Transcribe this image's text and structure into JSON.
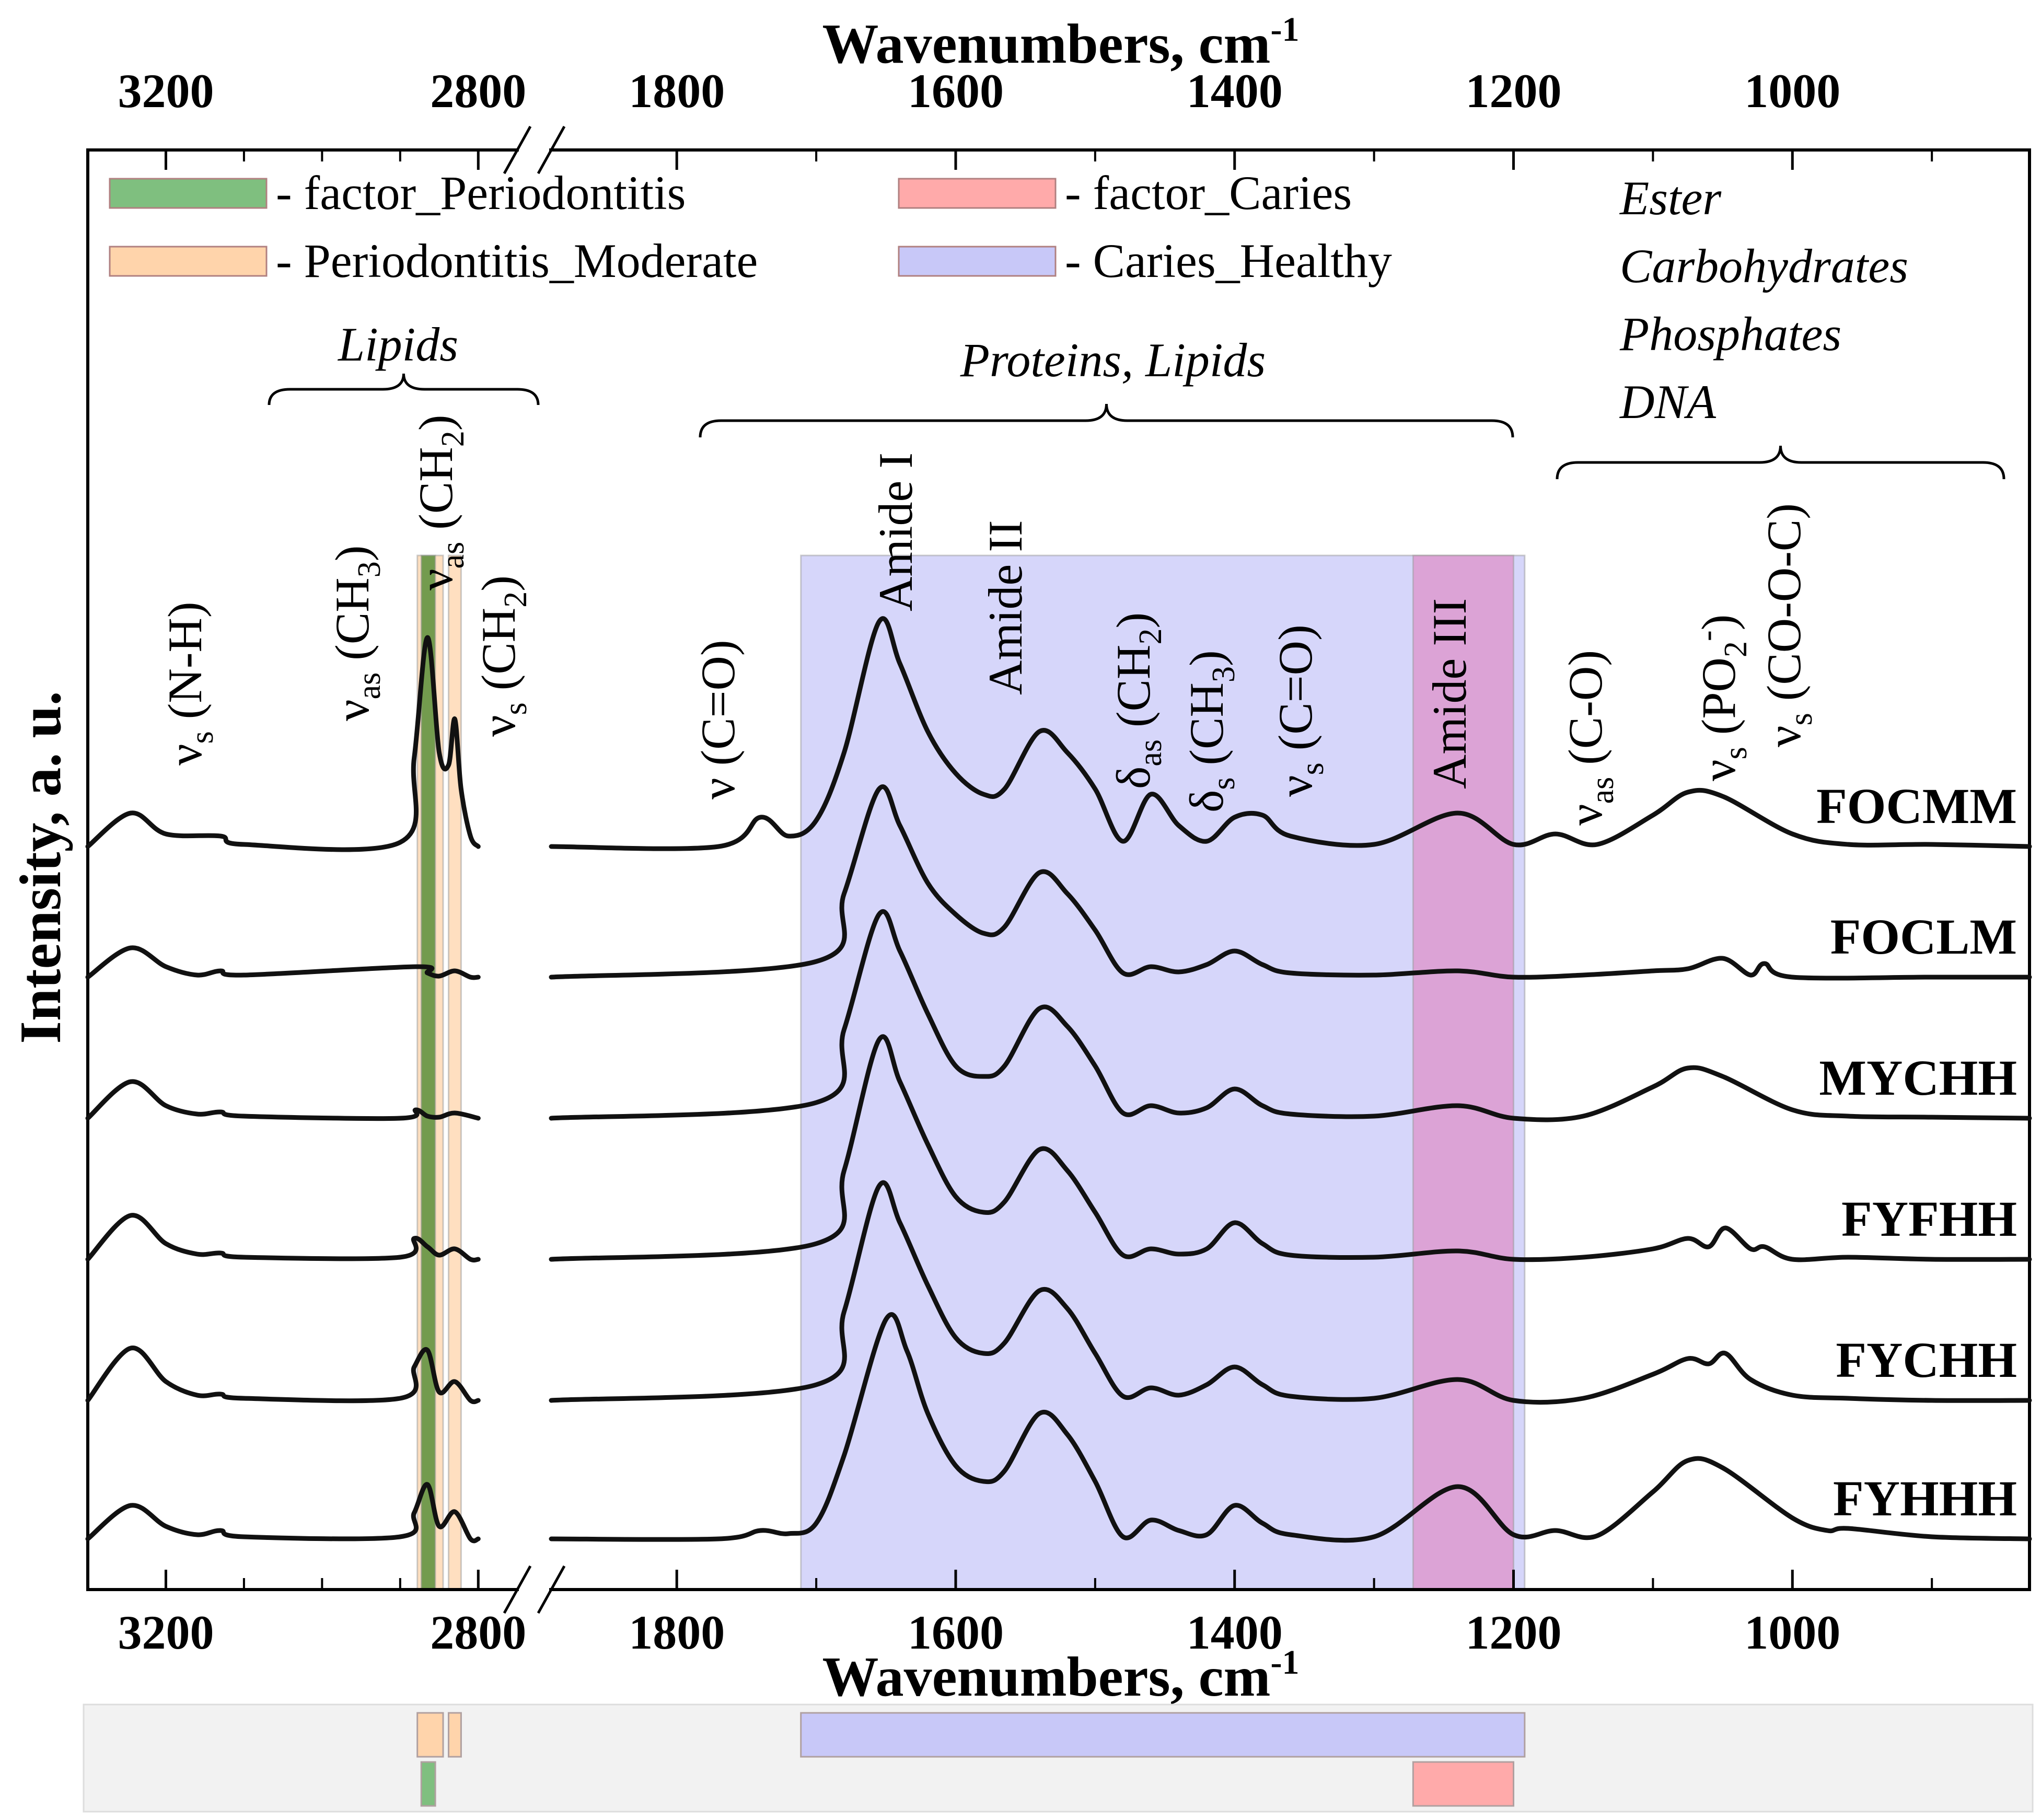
{
  "chart_data": {
    "type": "line",
    "title": "",
    "xlabel_top": "Wavenumbers, cm",
    "xlabel_bottom": "Wavenumbers, cm",
    "xlabel_sup": "-1",
    "ylabel": "Intensity, a. u.",
    "grid": false,
    "legend_position": "top",
    "x_axis_left_segment": {
      "range": [
        3300,
        2750
      ],
      "ticks": [
        "3200",
        "2800"
      ]
    },
    "x_axis_right_segment": {
      "range": [
        1890,
        830
      ],
      "ticks": [
        "1800",
        "1600",
        "1400",
        "1200",
        "1000"
      ]
    },
    "legend": [
      {
        "label": "- factor_Periodontitis",
        "color": "#7fbf7f"
      },
      {
        "label": "- Periodontitis_Moderate",
        "color": "#ffd4ab"
      },
      {
        "label": "- factor_Caries",
        "color": "#ffaaaa"
      },
      {
        "label": "- Caries_Healthy",
        "color": "#c8c8f8"
      }
    ],
    "regions": {
      "factor_Periodontitis": [
        [
          2873,
          2855
        ]
      ],
      "Periodontitis_Moderate": [
        [
          2878,
          2845
        ],
        [
          2838,
          2822
        ]
      ],
      "Caries_Healthy": [
        [
          1711,
          1192
        ]
      ],
      "factor_Caries": [
        [
          1272,
          1200
        ]
      ]
    },
    "group_labels": {
      "lipids": "Lipids",
      "proteins": "Proteins, Lipids",
      "ester": [
        "Ester",
        "Carbohydrates",
        "Phosphates",
        "DNA"
      ]
    },
    "annotations": [
      {
        "text": "ν",
        "sub": "s",
        "tail": " (N-H)"
      },
      {
        "text": "ν",
        "sub": "as",
        "tail": " (CH",
        "sub2": "3",
        "tail2": ")"
      },
      {
        "text": "ν",
        "sub": "as",
        "tail": " (CH",
        "sub2": "2",
        "tail2": ")"
      },
      {
        "text": "ν",
        "sub": "s",
        "tail": " (CH",
        "sub2": "2",
        "tail2": ")"
      },
      {
        "text": "ν (C=O)"
      },
      {
        "text": "Amide I"
      },
      {
        "text": "Amide II"
      },
      {
        "text": "δ",
        "sub": "as",
        "tail": " (CH",
        "sub2": "2",
        "tail2": ")"
      },
      {
        "text": "δ",
        "sub": "s",
        "tail": " (CH",
        "sub2": "3",
        "tail2": ")"
      },
      {
        "text": "ν",
        "sub": "s",
        "tail": " (C=O)"
      },
      {
        "text": "Amide III"
      },
      {
        "text": "ν",
        "sub": "as",
        "tail": " (C-O)"
      },
      {
        "text": "ν",
        "sub": "s",
        "tail": " (PO",
        "sub2": "2",
        "sup2": "-",
        "tail2": ")"
      },
      {
        "text": "ν",
        "sub": "s",
        "tail": " (CO-O-C)"
      }
    ],
    "series": [
      {
        "name": "FOCMM",
        "high": [
          [
            3300,
            0
          ],
          [
            3245,
            0.32
          ],
          [
            3200,
            0.12
          ],
          [
            3130,
            0.1
          ],
          [
            3100,
            0.02
          ],
          [
            2900,
            0.04
          ],
          [
            2882,
            0.85
          ],
          [
            2865,
            2.0
          ],
          [
            2850,
            0.9
          ],
          [
            2838,
            0.78
          ],
          [
            2830,
            1.22
          ],
          [
            2822,
            0.55
          ],
          [
            2810,
            0.1
          ],
          [
            2800,
            0
          ]
        ],
        "low": [
          [
            1890,
            0
          ],
          [
            1770,
            0
          ],
          [
            1740,
            0.28
          ],
          [
            1720,
            0.1
          ],
          [
            1700,
            0.25
          ],
          [
            1680,
            0.9
          ],
          [
            1655,
            2.15
          ],
          [
            1640,
            1.75
          ],
          [
            1620,
            1.1
          ],
          [
            1600,
            0.7
          ],
          [
            1580,
            0.5
          ],
          [
            1565,
            0.55
          ],
          [
            1540,
            1.1
          ],
          [
            1520,
            0.9
          ],
          [
            1500,
            0.55
          ],
          [
            1480,
            0.05
          ],
          [
            1460,
            0.5
          ],
          [
            1440,
            0.2
          ],
          [
            1420,
            0.05
          ],
          [
            1400,
            0.28
          ],
          [
            1380,
            0.3
          ],
          [
            1360,
            0.1
          ],
          [
            1300,
            0.02
          ],
          [
            1240,
            0.32
          ],
          [
            1200,
            0.02
          ],
          [
            1170,
            0.12
          ],
          [
            1140,
            0.02
          ],
          [
            1100,
            0.3
          ],
          [
            1075,
            0.52
          ],
          [
            1050,
            0.48
          ],
          [
            1000,
            0.12
          ],
          [
            960,
            0.02
          ],
          [
            900,
            0.02
          ],
          [
            830,
            0
          ]
        ]
      },
      {
        "name": "FOCLM",
        "high": [
          [
            3300,
            0
          ],
          [
            3245,
            0.28
          ],
          [
            3200,
            0.1
          ],
          [
            3160,
            0.02
          ],
          [
            3130,
            0.06
          ],
          [
            3100,
            0.02
          ],
          [
            2880,
            0.1
          ],
          [
            2865,
            0.04
          ],
          [
            2850,
            0.01
          ],
          [
            2830,
            0.06
          ],
          [
            2810,
            0
          ],
          [
            2800,
            0
          ]
        ],
        "low": [
          [
            1890,
            0
          ],
          [
            1700,
            0.15
          ],
          [
            1680,
            0.8
          ],
          [
            1655,
            1.8
          ],
          [
            1640,
            1.45
          ],
          [
            1620,
            0.9
          ],
          [
            1600,
            0.6
          ],
          [
            1580,
            0.42
          ],
          [
            1565,
            0.48
          ],
          [
            1540,
            1.0
          ],
          [
            1520,
            0.8
          ],
          [
            1500,
            0.45
          ],
          [
            1480,
            0.04
          ],
          [
            1460,
            0.1
          ],
          [
            1440,
            0.05
          ],
          [
            1420,
            0.12
          ],
          [
            1400,
            0.25
          ],
          [
            1380,
            0.12
          ],
          [
            1360,
            0.04
          ],
          [
            1300,
            0.02
          ],
          [
            1240,
            0.06
          ],
          [
            1200,
            0
          ],
          [
            1150,
            0.02
          ],
          [
            1100,
            0.06
          ],
          [
            1075,
            0.08
          ],
          [
            1050,
            0.18
          ],
          [
            1030,
            0.02
          ],
          [
            1020,
            0.13
          ],
          [
            1000,
            0
          ],
          [
            900,
            0
          ],
          [
            830,
            0
          ]
        ]
      },
      {
        "name": "MYCHH",
        "high": [
          [
            3300,
            0
          ],
          [
            3245,
            0.35
          ],
          [
            3200,
            0.12
          ],
          [
            3160,
            0.04
          ],
          [
            3130,
            0.06
          ],
          [
            3100,
            0.02
          ],
          [
            2900,
            0
          ],
          [
            2880,
            0.08
          ],
          [
            2865,
            0.02
          ],
          [
            2850,
            0.01
          ],
          [
            2830,
            0.05
          ],
          [
            2800,
            0
          ]
        ],
        "low": [
          [
            1890,
            0
          ],
          [
            1700,
            0.15
          ],
          [
            1680,
            0.85
          ],
          [
            1655,
            1.95
          ],
          [
            1640,
            1.6
          ],
          [
            1620,
            1.0
          ],
          [
            1600,
            0.5
          ],
          [
            1580,
            0.4
          ],
          [
            1565,
            0.5
          ],
          [
            1540,
            1.05
          ],
          [
            1520,
            0.88
          ],
          [
            1500,
            0.5
          ],
          [
            1480,
            0.05
          ],
          [
            1460,
            0.12
          ],
          [
            1440,
            0.05
          ],
          [
            1420,
            0.1
          ],
          [
            1400,
            0.28
          ],
          [
            1380,
            0.12
          ],
          [
            1360,
            0.04
          ],
          [
            1300,
            0.02
          ],
          [
            1240,
            0.12
          ],
          [
            1200,
            0
          ],
          [
            1150,
            0.02
          ],
          [
            1100,
            0.3
          ],
          [
            1075,
            0.48
          ],
          [
            1050,
            0.4
          ],
          [
            1000,
            0.08
          ],
          [
            960,
            0.02
          ],
          [
            900,
            0.01
          ],
          [
            830,
            0
          ]
        ]
      },
      {
        "name": "FYFHH",
        "high": [
          [
            3300,
            0
          ],
          [
            3245,
            0.42
          ],
          [
            3200,
            0.15
          ],
          [
            3160,
            0.05
          ],
          [
            3130,
            0.06
          ],
          [
            3100,
            0.02
          ],
          [
            2900,
            0.02
          ],
          [
            2882,
            0.2
          ],
          [
            2865,
            0.12
          ],
          [
            2850,
            0.04
          ],
          [
            2830,
            0.1
          ],
          [
            2810,
            0
          ],
          [
            2800,
            0
          ]
        ],
        "low": [
          [
            1890,
            0
          ],
          [
            1700,
            0.15
          ],
          [
            1680,
            0.85
          ],
          [
            1655,
            2.1
          ],
          [
            1640,
            1.7
          ],
          [
            1620,
            1.1
          ],
          [
            1600,
            0.6
          ],
          [
            1580,
            0.45
          ],
          [
            1565,
            0.55
          ],
          [
            1540,
            1.05
          ],
          [
            1520,
            0.85
          ],
          [
            1500,
            0.45
          ],
          [
            1480,
            0.04
          ],
          [
            1460,
            0.1
          ],
          [
            1440,
            0.05
          ],
          [
            1420,
            0.1
          ],
          [
            1400,
            0.35
          ],
          [
            1380,
            0.15
          ],
          [
            1360,
            0.04
          ],
          [
            1300,
            0.02
          ],
          [
            1240,
            0.08
          ],
          [
            1200,
            0
          ],
          [
            1150,
            0.02
          ],
          [
            1100,
            0.1
          ],
          [
            1075,
            0.2
          ],
          [
            1060,
            0.12
          ],
          [
            1048,
            0.3
          ],
          [
            1030,
            0.1
          ],
          [
            1020,
            0.12
          ],
          [
            1000,
            0
          ],
          [
            960,
            0.02
          ],
          [
            900,
            0
          ],
          [
            830,
            0
          ]
        ]
      },
      {
        "name": "FYCHH",
        "high": [
          [
            3300,
            0
          ],
          [
            3245,
            0.5
          ],
          [
            3200,
            0.18
          ],
          [
            3160,
            0.05
          ],
          [
            3130,
            0.06
          ],
          [
            3100,
            0.02
          ],
          [
            2900,
            0.02
          ],
          [
            2882,
            0.32
          ],
          [
            2865,
            0.48
          ],
          [
            2850,
            0.08
          ],
          [
            2830,
            0.18
          ],
          [
            2810,
            0
          ],
          [
            2800,
            0
          ]
        ],
        "low": [
          [
            1890,
            0
          ],
          [
            1700,
            0.15
          ],
          [
            1680,
            0.85
          ],
          [
            1655,
            2.05
          ],
          [
            1640,
            1.7
          ],
          [
            1620,
            1.1
          ],
          [
            1600,
            0.6
          ],
          [
            1580,
            0.45
          ],
          [
            1565,
            0.55
          ],
          [
            1540,
            1.05
          ],
          [
            1520,
            0.88
          ],
          [
            1500,
            0.45
          ],
          [
            1480,
            0.04
          ],
          [
            1460,
            0.12
          ],
          [
            1440,
            0.05
          ],
          [
            1420,
            0.15
          ],
          [
            1400,
            0.32
          ],
          [
            1380,
            0.15
          ],
          [
            1360,
            0.04
          ],
          [
            1300,
            0.02
          ],
          [
            1240,
            0.2
          ],
          [
            1200,
            0
          ],
          [
            1150,
            0.02
          ],
          [
            1100,
            0.25
          ],
          [
            1075,
            0.4
          ],
          [
            1060,
            0.35
          ],
          [
            1048,
            0.45
          ],
          [
            1030,
            0.2
          ],
          [
            1000,
            0.05
          ],
          [
            960,
            0.02
          ],
          [
            900,
            0
          ],
          [
            830,
            0
          ]
        ]
      },
      {
        "name": "FYHHH",
        "high": [
          [
            3300,
            0
          ],
          [
            3245,
            0.32
          ],
          [
            3200,
            0.12
          ],
          [
            3160,
            0.04
          ],
          [
            3130,
            0.08
          ],
          [
            3100,
            0.02
          ],
          [
            2900,
            0.02
          ],
          [
            2882,
            0.25
          ],
          [
            2865,
            0.52
          ],
          [
            2850,
            0.12
          ],
          [
            2830,
            0.26
          ],
          [
            2810,
            0
          ],
          [
            2800,
            0
          ]
        ],
        "low": [
          [
            1890,
            0
          ],
          [
            1770,
            0
          ],
          [
            1740,
            0.08
          ],
          [
            1720,
            0.05
          ],
          [
            1700,
            0.15
          ],
          [
            1680,
            0.8
          ],
          [
            1650,
            2.1
          ],
          [
            1635,
            1.8
          ],
          [
            1620,
            1.2
          ],
          [
            1600,
            0.7
          ],
          [
            1580,
            0.55
          ],
          [
            1565,
            0.65
          ],
          [
            1540,
            1.2
          ],
          [
            1520,
            1.0
          ],
          [
            1500,
            0.55
          ],
          [
            1480,
            0.02
          ],
          [
            1460,
            0.18
          ],
          [
            1440,
            0.08
          ],
          [
            1420,
            0.04
          ],
          [
            1400,
            0.32
          ],
          [
            1380,
            0.15
          ],
          [
            1360,
            0.04
          ],
          [
            1300,
            0.02
          ],
          [
            1240,
            0.5
          ],
          [
            1200,
            0.04
          ],
          [
            1170,
            0.08
          ],
          [
            1140,
            0.03
          ],
          [
            1100,
            0.45
          ],
          [
            1075,
            0.75
          ],
          [
            1050,
            0.68
          ],
          [
            1000,
            0.2
          ],
          [
            975,
            0.08
          ],
          [
            960,
            0.1
          ],
          [
            900,
            0.02
          ],
          [
            830,
            0
          ]
        ]
      }
    ],
    "bottom_strip": {
      "row1": [
        "Periodontitis_Moderate",
        "Caries_Healthy"
      ],
      "row2": [
        "factor_Periodontitis",
        "factor_Caries"
      ]
    }
  }
}
